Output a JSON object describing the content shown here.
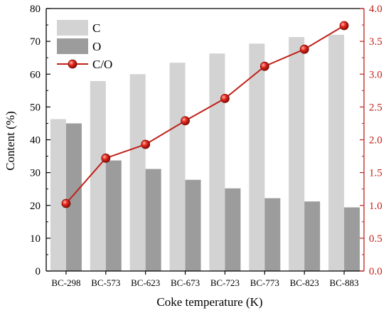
{
  "chart_data": {
    "type": "bar+line",
    "categories": [
      "BC-298",
      "BC-573",
      "BC-623",
      "BC-673",
      "BC-723",
      "BC-773",
      "BC-823",
      "BC-883"
    ],
    "series": [
      {
        "name": "C",
        "type": "bar",
        "axis": "left",
        "color": "#d3d3d3",
        "values": [
          46.3,
          57.9,
          60.0,
          63.5,
          66.3,
          69.3,
          71.3,
          72.0
        ]
      },
      {
        "name": "O",
        "type": "bar",
        "axis": "left",
        "color": "#9c9c9c",
        "values": [
          45.0,
          33.7,
          31.1,
          27.8,
          25.2,
          22.2,
          21.2,
          19.4
        ]
      },
      {
        "name": "C/O",
        "type": "line",
        "axis": "right",
        "color": "#c0221a",
        "values": [
          1.03,
          1.72,
          1.93,
          2.29,
          2.63,
          3.12,
          3.38,
          3.74
        ]
      }
    ],
    "xlabel": "Coke temperature (K)",
    "ylabel": "Content (%)",
    "ylim": [
      0,
      80
    ],
    "yticks": [
      0,
      10,
      20,
      30,
      40,
      50,
      60,
      70,
      80
    ],
    "y2lim": [
      0,
      4
    ],
    "y2ticks": [
      "0.0",
      "0.5",
      "1.0",
      "1.5",
      "2.0",
      "2.5",
      "3.0",
      "3.5",
      "4.0"
    ],
    "legend_position": "top-left",
    "grid": false
  }
}
